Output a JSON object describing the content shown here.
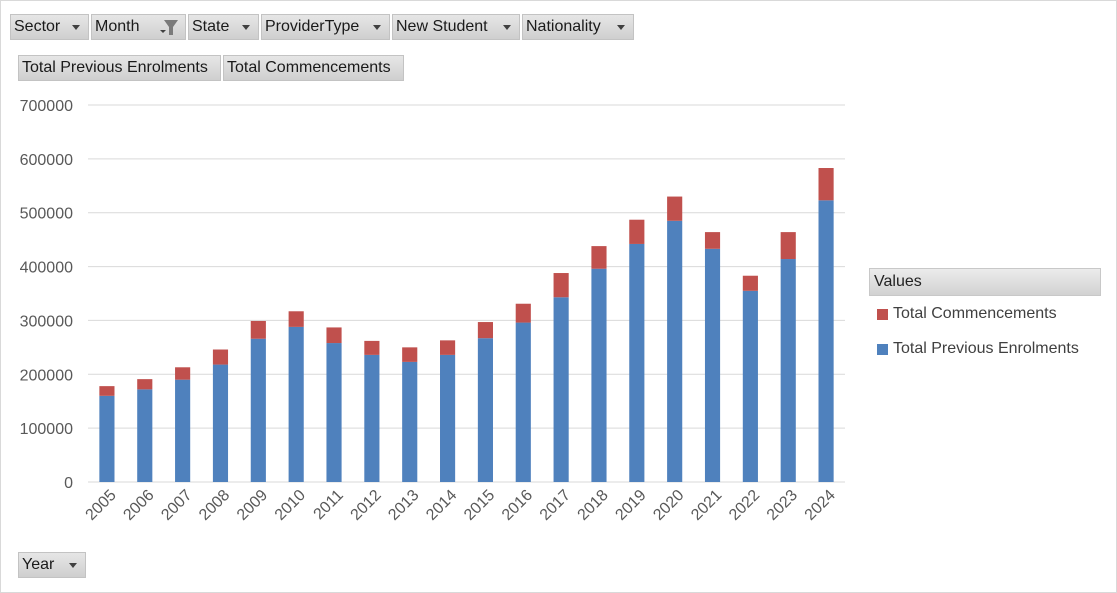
{
  "filters": {
    "sector": "Sector",
    "month": "Month",
    "state": "State",
    "provider_type": "ProviderType",
    "new_student": "New Student",
    "nationality": "Nationality"
  },
  "value_buttons": {
    "previous": "Total Previous Enrolments",
    "commencements": "Total Commencements"
  },
  "axis_button": "Year",
  "legend": {
    "header": "Values",
    "items": [
      {
        "label": "Total Commencements",
        "color": "#c0504d"
      },
      {
        "label": "Total Previous Enrolments",
        "color": "#4f81bd"
      }
    ]
  },
  "chart_data": {
    "type": "bar",
    "stacked": true,
    "categories": [
      "2005",
      "2006",
      "2007",
      "2008",
      "2009",
      "2010",
      "2011",
      "2012",
      "2013",
      "2014",
      "2015",
      "2016",
      "2017",
      "2018",
      "2019",
      "2020",
      "2021",
      "2022",
      "2023",
      "2024"
    ],
    "series": [
      {
        "name": "Total Previous Enrolments",
        "color": "#4f81bd",
        "values": [
          160000,
          172000,
          190000,
          218000,
          266000,
          288000,
          258000,
          236000,
          223000,
          236000,
          267000,
          296000,
          343000,
          396000,
          442000,
          485000,
          433000,
          355000,
          414000,
          523000
        ]
      },
      {
        "name": "Total Commencements",
        "color": "#c0504d",
        "values": [
          18000,
          19000,
          23000,
          28000,
          33000,
          29000,
          29000,
          26000,
          27000,
          27000,
          30000,
          35000,
          45000,
          42000,
          45000,
          45000,
          31000,
          28000,
          50000,
          60000
        ]
      }
    ],
    "ylim": [
      0,
      700000
    ],
    "yticks": [
      "0",
      "100000",
      "200000",
      "300000",
      "400000",
      "500000",
      "600000",
      "700000"
    ],
    "grid": true,
    "legend_position": "right"
  }
}
